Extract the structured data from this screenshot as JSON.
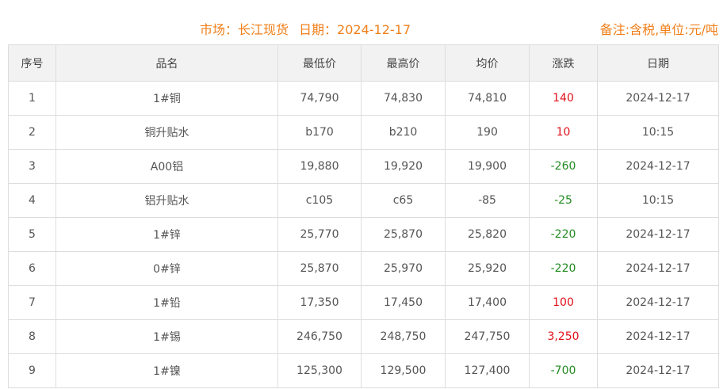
{
  "header": {
    "market_label": "市场：长江现货",
    "date_label": "日期：2024-12-17",
    "note": "备注:含税,单位:元/吨"
  },
  "colors": {
    "accent": "#f07f1a",
    "up": "#e0101a",
    "down": "#228b22"
  },
  "table": {
    "columns": [
      "序号",
      "品名",
      "最低价",
      "最高价",
      "均价",
      "涨跌",
      "日期"
    ],
    "rows": [
      {
        "no": "1",
        "name": "1#铜",
        "low": "74,790",
        "high": "74,830",
        "avg": "74,810",
        "change": "140",
        "dir": "up",
        "date": "2024-12-17"
      },
      {
        "no": "2",
        "name": "铜升贴水",
        "low": "b170",
        "high": "b210",
        "avg": "190",
        "change": "10",
        "dir": "up",
        "date": "10:15"
      },
      {
        "no": "3",
        "name": "A00铝",
        "low": "19,880",
        "high": "19,920",
        "avg": "19,900",
        "change": "-260",
        "dir": "down",
        "date": "2024-12-17"
      },
      {
        "no": "4",
        "name": "铝升贴水",
        "low": "c105",
        "high": "c65",
        "avg": "-85",
        "change": "-25",
        "dir": "down",
        "date": "10:15"
      },
      {
        "no": "5",
        "name": "1#锌",
        "low": "25,770",
        "high": "25,870",
        "avg": "25,820",
        "change": "-220",
        "dir": "down",
        "date": "2024-12-17"
      },
      {
        "no": "6",
        "name": "0#锌",
        "low": "25,870",
        "high": "25,970",
        "avg": "25,920",
        "change": "-220",
        "dir": "down",
        "date": "2024-12-17"
      },
      {
        "no": "7",
        "name": "1#铅",
        "low": "17,350",
        "high": "17,450",
        "avg": "17,400",
        "change": "100",
        "dir": "up",
        "date": "2024-12-17"
      },
      {
        "no": "8",
        "name": "1#锡",
        "low": "246,750",
        "high": "248,750",
        "avg": "247,750",
        "change": "3,250",
        "dir": "up",
        "date": "2024-12-17"
      },
      {
        "no": "9",
        "name": "1#镍",
        "low": "125,300",
        "high": "129,500",
        "avg": "127,400",
        "change": "-700",
        "dir": "down",
        "date": "2024-12-17"
      }
    ]
  }
}
